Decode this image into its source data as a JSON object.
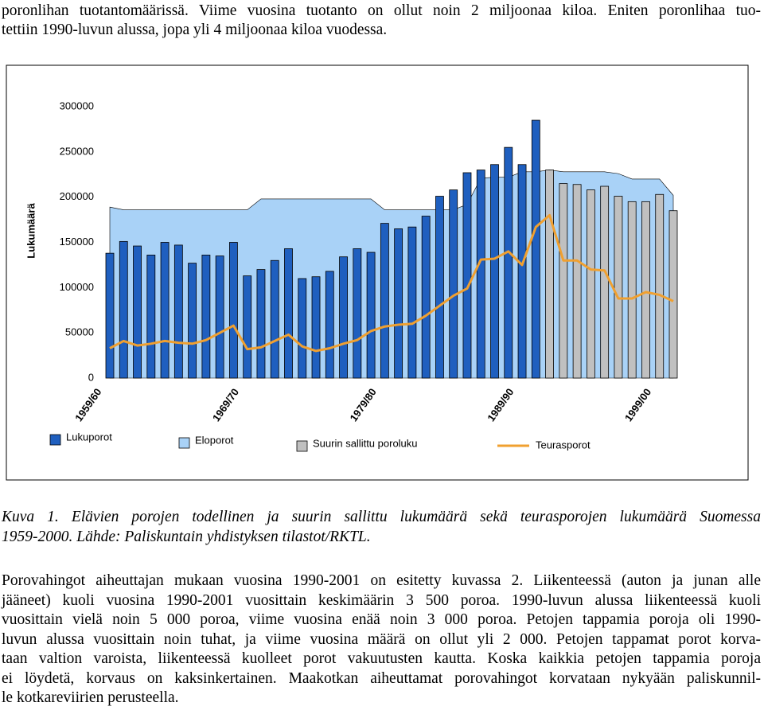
{
  "top": {
    "lines": [
      "poronlihan tuotantomäärissä. Viime vuosina tuotanto on ollut noin 2 miljoonaa kiloa. Eniten poronlihaa tuo-",
      "tettiin 1990-luvun alussa, jopa yli 4 miljoonaa kiloa vuodessa."
    ]
  },
  "chart_data": {
    "type": "bar",
    "ylabel": "Lukumäärä",
    "categories": [
      "1959/60",
      null,
      null,
      null,
      null,
      null,
      null,
      null,
      null,
      null,
      "1969/70",
      null,
      null,
      null,
      null,
      null,
      null,
      null,
      null,
      null,
      "1979/80",
      null,
      null,
      null,
      null,
      null,
      null,
      null,
      null,
      null,
      "1989/90",
      null,
      null,
      null,
      null,
      null,
      null,
      null,
      null,
      null,
      "1999/00",
      null
    ],
    "series": [
      {
        "name": "Lukuporot",
        "type": "bar",
        "color": "#1f5fbf",
        "values": [
          138000,
          151000,
          146000,
          136000,
          150000,
          147000,
          127000,
          136000,
          135000,
          150000,
          113000,
          120000,
          130000,
          143000,
          110000,
          112000,
          118000,
          134000,
          143000,
          139000,
          171000,
          165000,
          167000,
          179000,
          201000,
          208000,
          227000,
          230000,
          236000,
          255000,
          236000,
          285000,
          null,
          null,
          null,
          null,
          null,
          null,
          null,
          null,
          null,
          null
        ]
      },
      {
        "name": "Eloporot",
        "type": "area",
        "color": "#a9d2f7",
        "values": [
          189000,
          186000,
          186000,
          186000,
          186000,
          186000,
          186000,
          186000,
          186000,
          186000,
          186000,
          198000,
          198000,
          198000,
          198000,
          198000,
          198000,
          198000,
          198000,
          198000,
          186000,
          186000,
          186000,
          186000,
          186000,
          186000,
          192000,
          221000,
          222000,
          222000,
          228000,
          228000,
          230000,
          228000,
          228000,
          228000,
          228000,
          226000,
          220000,
          220000,
          220000,
          202000
        ]
      },
      {
        "name": "Suurin sallittu poroluku",
        "type": "bar",
        "color": "#c0c0c0",
        "values": [
          null,
          null,
          null,
          null,
          null,
          null,
          null,
          null,
          null,
          null,
          null,
          null,
          null,
          null,
          null,
          null,
          null,
          null,
          null,
          null,
          null,
          null,
          null,
          null,
          null,
          null,
          null,
          null,
          null,
          null,
          null,
          null,
          230000,
          215000,
          214000,
          208000,
          212000,
          201000,
          195000,
          195000,
          203000,
          185000
        ]
      },
      {
        "name": "Teurasporot",
        "type": "line",
        "color": "#f0a030",
        "values": [
          33000,
          41000,
          36000,
          38000,
          41000,
          39000,
          38000,
          42000,
          50000,
          58000,
          32000,
          34000,
          41000,
          48000,
          35000,
          30000,
          33000,
          38000,
          42000,
          52000,
          57000,
          59000,
          60000,
          69000,
          80000,
          91000,
          99000,
          131000,
          132000,
          140000,
          125000,
          167000,
          180000,
          130000,
          130000,
          120000,
          119000,
          88000,
          88000,
          95000,
          92000,
          85000
        ]
      }
    ],
    "ylim": [
      0,
      300000
    ],
    "yticks": [
      0,
      50000,
      100000,
      150000,
      200000,
      250000,
      300000
    ]
  },
  "caption": {
    "lines": [
      "Kuva 1. Elävien porojen todellinen ja suurin sallittu lukumäärä sekä teurasporojen lukumäärä Suomessa",
      "1959-2000. Lähde: Paliskuntain yhdistyksen tilastot/RKTL."
    ]
  },
  "paragraph": {
    "lines": [
      "Porovahingot aiheuttajan mukaan vuosina 1990-2001 on esitetty kuvassa 2. Liikenteessä (auton ja junan alle",
      "jääneet) kuoli vuosina 1990-2001 vuosittain keskimäärin 3 500 poroa. 1990-luvun alussa liikenteessä kuoli",
      "vuosittain vielä noin 5 000 poroa, viime vuosina enää noin 3 000 poroa. Petojen tappamia poroja oli 1990-",
      "luvun alussa vuosittain noin tuhat, ja viime vuosina määrä on ollut yli 2 000. Petojen tappamat porot korva-",
      "taan valtion varoista, liikenteessä kuolleet porot vakuutusten kautta. Koska kaikkia petojen tappamia poroja",
      "ei löydetä, korvaus on kaksinkertainen. Maakotkan aiheuttamat porovahingot korvataan nykyään paliskunnil-",
      "le kotkareviirien perusteella."
    ]
  }
}
